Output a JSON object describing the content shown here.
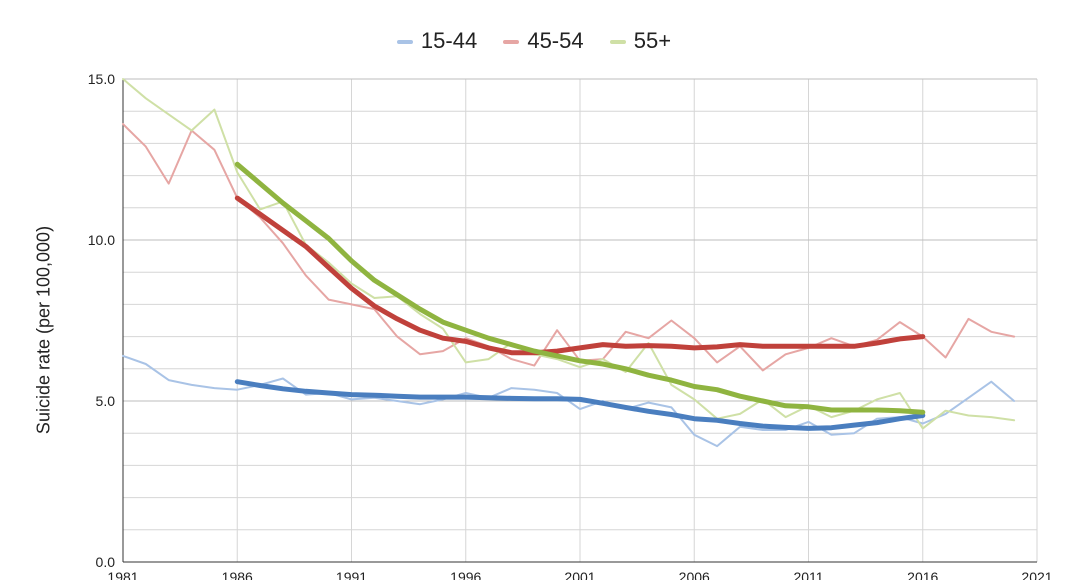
{
  "chart_data": {
    "type": "line",
    "title": "",
    "xlabel": "",
    "ylabel": "Suicide rate (per 100,000)",
    "xlim": [
      1981,
      2021
    ],
    "ylim": [
      0,
      15
    ],
    "x_ticks": [
      "1981",
      "1986",
      "1991",
      "1996",
      "2001",
      "2006",
      "2011",
      "2016",
      "2021"
    ],
    "y_ticks": [
      "0.0",
      "5.0",
      "10.0",
      "15.0"
    ],
    "grid": true,
    "legend_position": "top-center",
    "series": [
      {
        "name": "15-44",
        "color": "#4a7ebf",
        "light_color": "#a9c3e6",
        "raw_x": [
          1981,
          1982,
          1983,
          1984,
          1985,
          1986,
          1987,
          1988,
          1989,
          1990,
          1991,
          1992,
          1993,
          1994,
          1995,
          1996,
          1997,
          1998,
          1999,
          2000,
          2001,
          2002,
          2003,
          2004,
          2005,
          2006,
          2007,
          2008,
          2009,
          2010,
          2011,
          2012,
          2013,
          2014,
          2015,
          2016,
          2017,
          2018,
          2019,
          2020
        ],
        "raw_y": [
          6.4,
          6.15,
          5.65,
          5.5,
          5.4,
          5.35,
          5.5,
          5.7,
          5.2,
          5.25,
          5.05,
          5.1,
          5.0,
          4.9,
          5.05,
          5.25,
          5.1,
          5.4,
          5.35,
          5.25,
          4.75,
          5.0,
          4.75,
          4.95,
          4.8,
          3.95,
          3.6,
          4.2,
          4.1,
          4.1,
          4.35,
          3.95,
          4.0,
          4.45,
          4.5,
          4.3,
          4.6,
          5.1,
          5.6,
          5.0
        ],
        "trend_x": [
          1986,
          1987,
          1988,
          1989,
          1990,
          1991,
          1992,
          1993,
          1994,
          1995,
          1996,
          1997,
          1998,
          1999,
          2000,
          2001,
          2002,
          2003,
          2004,
          2005,
          2006,
          2007,
          2008,
          2009,
          2010,
          2011,
          2012,
          2013,
          2014,
          2015,
          2016
        ],
        "trend_y": [
          5.6,
          5.48,
          5.38,
          5.3,
          5.25,
          5.2,
          5.18,
          5.15,
          5.12,
          5.12,
          5.12,
          5.1,
          5.08,
          5.07,
          5.07,
          5.05,
          4.93,
          4.8,
          4.68,
          4.58,
          4.45,
          4.4,
          4.3,
          4.22,
          4.18,
          4.15,
          4.17,
          4.25,
          4.33,
          4.45,
          4.55
        ]
      },
      {
        "name": "45-54",
        "color": "#c0413b",
        "light_color": "#e6a6a4",
        "raw_x": [
          1981,
          1982,
          1983,
          1984,
          1985,
          1986,
          1987,
          1988,
          1989,
          1990,
          1991,
          1992,
          1993,
          1994,
          1995,
          1996,
          1997,
          1998,
          1999,
          2000,
          2001,
          2002,
          2003,
          2004,
          2005,
          2006,
          2007,
          2008,
          2009,
          2010,
          2011,
          2012,
          2013,
          2014,
          2015,
          2016,
          2017,
          2018,
          2019,
          2020
        ],
        "raw_y": [
          13.6,
          12.9,
          11.75,
          13.4,
          12.8,
          11.3,
          10.7,
          9.9,
          8.9,
          8.15,
          8.0,
          7.85,
          7.0,
          6.45,
          6.55,
          6.95,
          6.7,
          6.3,
          6.1,
          7.2,
          6.25,
          6.3,
          7.15,
          6.95,
          7.5,
          6.95,
          6.2,
          6.7,
          5.95,
          6.45,
          6.65,
          6.95,
          6.7,
          6.9,
          7.45,
          7.0,
          6.35,
          7.55,
          7.15,
          7.0
        ],
        "trend_x": [
          1986,
          1987,
          1988,
          1989,
          1990,
          1991,
          1992,
          1993,
          1994,
          1995,
          1996,
          1997,
          1998,
          1999,
          2000,
          2001,
          2002,
          2003,
          2004,
          2005,
          2006,
          2007,
          2008,
          2009,
          2010,
          2011,
          2012,
          2013,
          2014,
          2015,
          2016
        ],
        "trend_y": [
          11.3,
          10.8,
          10.3,
          9.8,
          9.15,
          8.5,
          7.95,
          7.55,
          7.2,
          6.95,
          6.85,
          6.65,
          6.5,
          6.5,
          6.55,
          6.65,
          6.75,
          6.7,
          6.72,
          6.7,
          6.65,
          6.68,
          6.75,
          6.7,
          6.7,
          6.7,
          6.7,
          6.7,
          6.8,
          6.93,
          7.0
        ]
      },
      {
        "name": "55+",
        "color": "#8fb440",
        "light_color": "#cfe0a6",
        "raw_x": [
          1981,
          1982,
          1983,
          1984,
          1985,
          1986,
          1987,
          1988,
          1989,
          1990,
          1991,
          1992,
          1993,
          1994,
          1995,
          1996,
          1997,
          1998,
          1999,
          2000,
          2001,
          2002,
          2003,
          2004,
          2005,
          2006,
          2007,
          2008,
          2009,
          2010,
          2011,
          2012,
          2013,
          2014,
          2015,
          2016,
          2017,
          2018,
          2019,
          2020
        ],
        "raw_y": [
          15.0,
          14.4,
          13.9,
          13.4,
          14.05,
          12.1,
          10.95,
          11.2,
          9.85,
          9.3,
          8.65,
          8.2,
          8.25,
          7.7,
          7.25,
          6.2,
          6.3,
          6.8,
          6.45,
          6.3,
          6.05,
          6.3,
          5.9,
          6.8,
          5.5,
          5.05,
          4.45,
          4.6,
          5.05,
          4.5,
          4.85,
          4.5,
          4.7,
          5.05,
          5.25,
          4.15,
          4.7,
          4.55,
          4.5,
          4.4
        ],
        "trend_x": [
          1986,
          1987,
          1988,
          1989,
          1990,
          1991,
          1992,
          1993,
          1994,
          1995,
          1996,
          1997,
          1998,
          1999,
          2000,
          2001,
          2002,
          2003,
          2004,
          2005,
          2006,
          2007,
          2008,
          2009,
          2010,
          2011,
          2012,
          2013,
          2014,
          2015,
          2016
        ],
        "trend_y": [
          12.35,
          11.75,
          11.15,
          10.6,
          10.05,
          9.35,
          8.75,
          8.3,
          7.85,
          7.45,
          7.2,
          6.95,
          6.75,
          6.55,
          6.4,
          6.25,
          6.15,
          6.0,
          5.8,
          5.65,
          5.45,
          5.35,
          5.15,
          5.0,
          4.85,
          4.82,
          4.72,
          4.72,
          4.72,
          4.7,
          4.65
        ]
      }
    ]
  }
}
